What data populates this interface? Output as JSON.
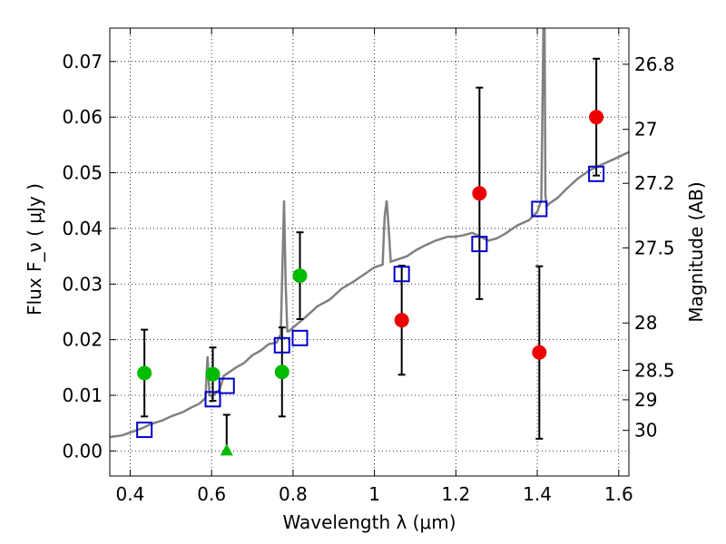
{
  "chart_data": {
    "type": "scatter",
    "xlabel": "Wavelength  λ (μm)",
    "ylabel": "Flux  F_ν  ( μJy )",
    "ylabel_right": "Magnitude (AB)",
    "xlim": [
      0.35,
      1.625
    ],
    "ylim": [
      -0.0045,
      0.076
    ],
    "grid": true,
    "x_ticks": [
      0.4,
      0.6,
      0.8,
      1.0,
      1.2,
      1.4,
      1.6
    ],
    "x_tick_labels": [
      "0.4",
      "0.6",
      "0.8",
      "1",
      "1.2",
      "1.4",
      "1.6"
    ],
    "y_ticks": [
      0.0,
      0.01,
      0.02,
      0.03,
      0.04,
      0.05,
      0.06,
      0.07
    ],
    "y_tick_labels": [
      "0.00",
      "0.01",
      "0.02",
      "0.03",
      "0.04",
      "0.05",
      "0.06",
      "0.07"
    ],
    "right_ticks": [
      {
        "label": "26.8",
        "flux": 0.0695
      },
      {
        "label": "27",
        "flux": 0.0578
      },
      {
        "label": "27.2",
        "flux": 0.0481
      },
      {
        "label": "27.5",
        "flux": 0.0365
      },
      {
        "label": "28",
        "flux": 0.023
      },
      {
        "label": "28.5",
        "flux": 0.0145
      },
      {
        "label": "29",
        "flux": 0.0092
      },
      {
        "label": "30",
        "flux": 0.0037
      }
    ],
    "model_spectrum": {
      "color": "#808080",
      "x": [
        0.35,
        0.38,
        0.4,
        0.43,
        0.45,
        0.48,
        0.5,
        0.53,
        0.55,
        0.57,
        0.585,
        0.59,
        0.595,
        0.6,
        0.62,
        0.63,
        0.64,
        0.66,
        0.68,
        0.7,
        0.72,
        0.74,
        0.76,
        0.77,
        0.778,
        0.782,
        0.786,
        0.79,
        0.8,
        0.83,
        0.86,
        0.89,
        0.92,
        0.95,
        0.98,
        1.0,
        1.02,
        1.025,
        1.03,
        1.035,
        1.04,
        1.06,
        1.08,
        1.1,
        1.12,
        1.15,
        1.18,
        1.2,
        1.22,
        1.24,
        1.26,
        1.28,
        1.3,
        1.32,
        1.35,
        1.38,
        1.4,
        1.41,
        1.415,
        1.418,
        1.42,
        1.423,
        1.43,
        1.45,
        1.47,
        1.5,
        1.53,
        1.56,
        1.59,
        1.625
      ],
      "y": [
        0.0025,
        0.0028,
        0.0033,
        0.0041,
        0.0048,
        0.0055,
        0.0062,
        0.007,
        0.0078,
        0.0085,
        0.0095,
        0.017,
        0.01,
        0.0098,
        0.011,
        0.0135,
        0.014,
        0.015,
        0.0158,
        0.0172,
        0.018,
        0.0192,
        0.0195,
        0.021,
        0.045,
        0.03,
        0.0215,
        0.0215,
        0.0222,
        0.024,
        0.026,
        0.0272,
        0.0292,
        0.0305,
        0.032,
        0.033,
        0.0335,
        0.042,
        0.045,
        0.04,
        0.034,
        0.0345,
        0.035,
        0.036,
        0.0368,
        0.0378,
        0.0385,
        0.0385,
        0.0388,
        0.0392,
        0.0385,
        0.0378,
        0.0382,
        0.039,
        0.0405,
        0.0415,
        0.043,
        0.045,
        0.076,
        0.076,
        0.046,
        0.044,
        0.0445,
        0.0455,
        0.047,
        0.049,
        0.0505,
        0.0515,
        0.0525,
        0.0537
      ]
    },
    "model_points": {
      "marker": "open-square",
      "color": "#0000cc",
      "x": [
        0.435,
        0.603,
        0.637,
        0.773,
        0.817,
        1.067,
        1.258,
        1.405,
        1.545
      ],
      "y": [
        0.0038,
        0.0093,
        0.0117,
        0.019,
        0.0203,
        0.0318,
        0.0372,
        0.0435,
        0.0498
      ]
    },
    "observed_green": {
      "marker": "filled-circle",
      "color": "#00bb00",
      "x": [
        0.435,
        0.603,
        0.773,
        0.817
      ],
      "y": [
        0.014,
        0.0138,
        0.0142,
        0.0315
      ],
      "err": [
        0.0078,
        0.0048,
        0.008,
        0.0078
      ]
    },
    "observed_red": {
      "marker": "filled-circle",
      "color": "#ee0000",
      "x": [
        1.067,
        1.258,
        1.405,
        1.545
      ],
      "y": [
        0.0235,
        0.0463,
        0.0177,
        0.06
      ],
      "err": [
        0.0098,
        0.019,
        0.0155,
        0.0105
      ]
    },
    "upper_limit": {
      "marker": "filled-triangle",
      "color": "#00bb00",
      "x": [
        0.637
      ],
      "y": [
        0.0
      ],
      "err_top": [
        0.0065
      ]
    }
  }
}
